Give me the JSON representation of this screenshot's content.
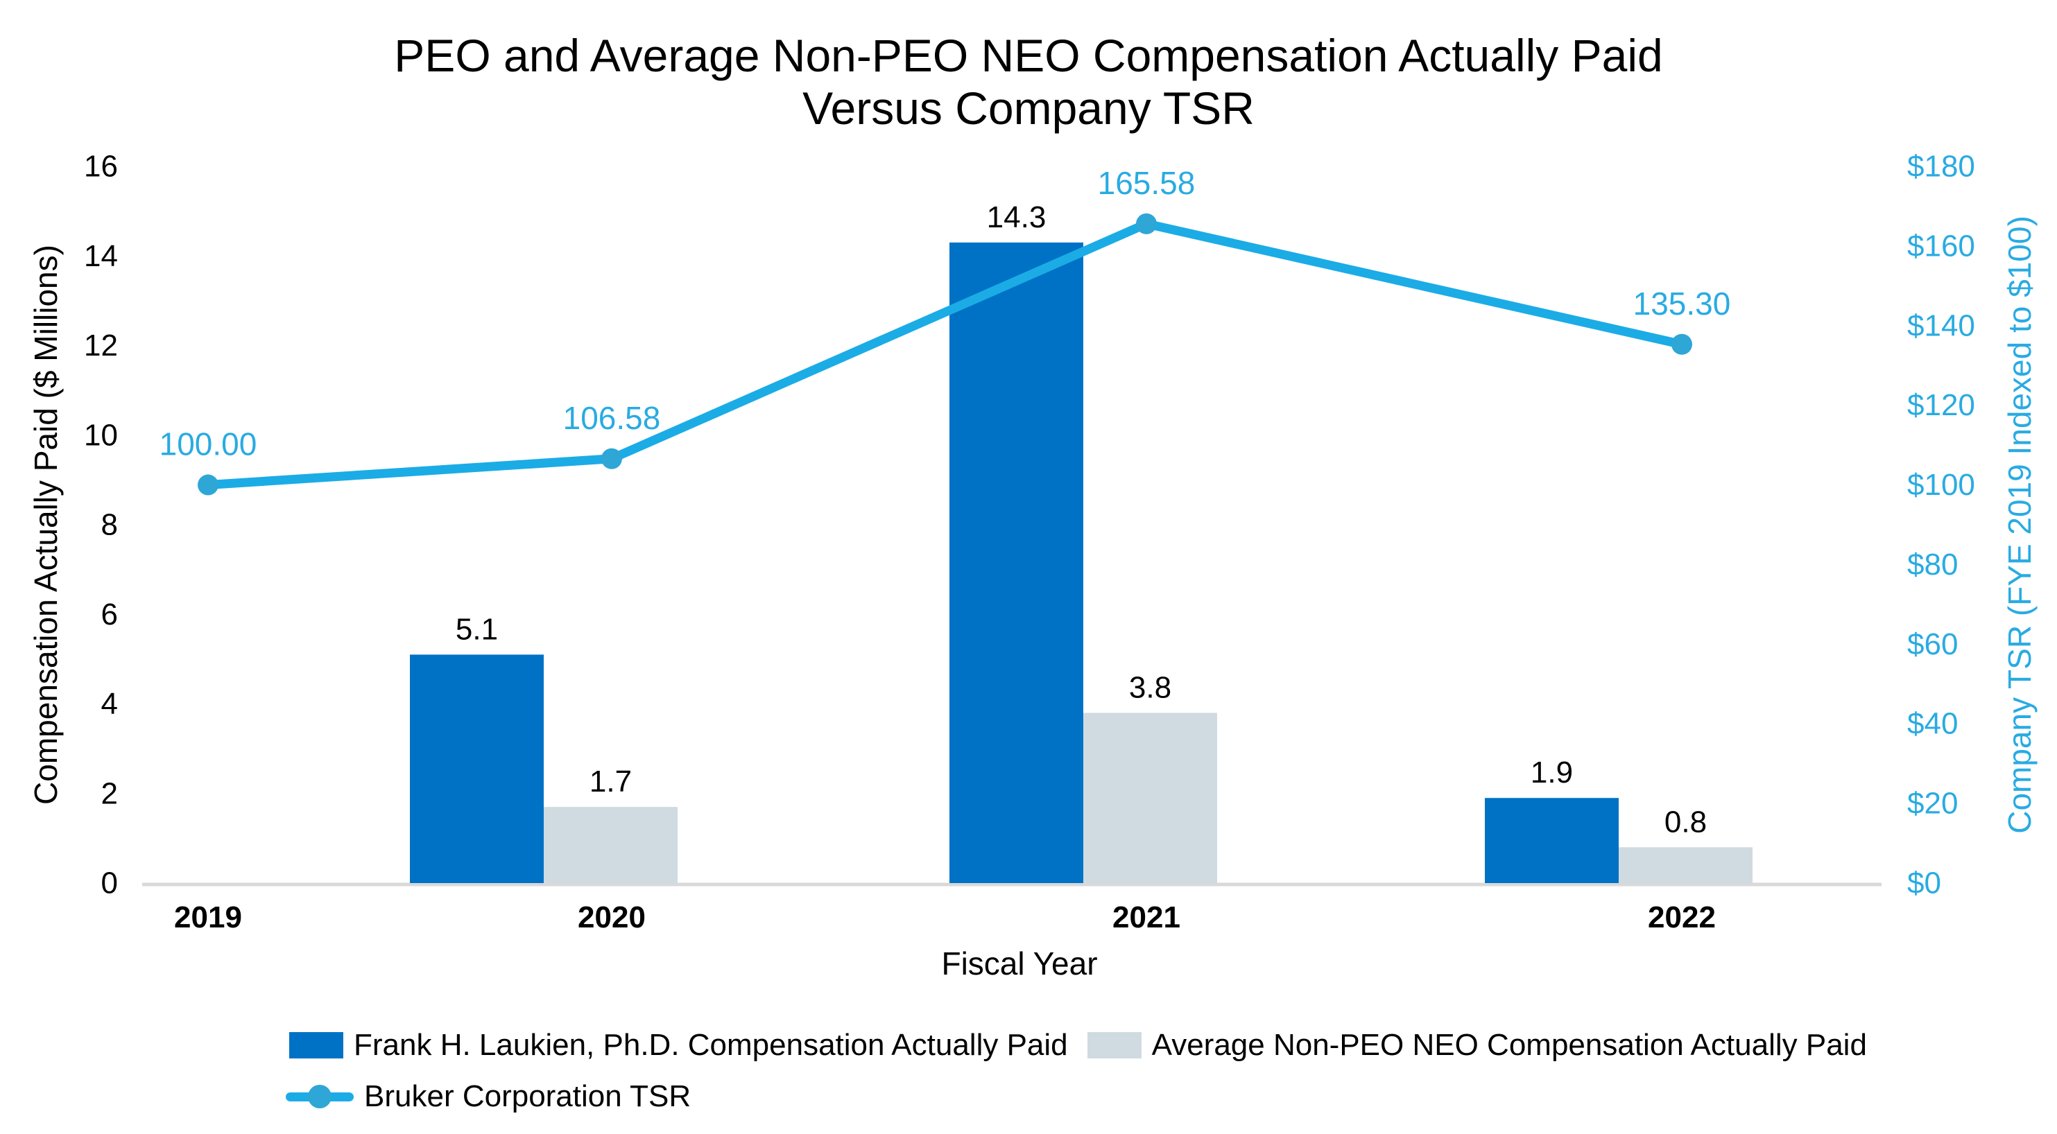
{
  "title": {
    "line1": "PEO and Average Non-PEO NEO Compensation Actually Paid",
    "line2": "Versus Company TSR"
  },
  "chart_data": {
    "type": "combo-bar-line",
    "categories": [
      "2019",
      "2020",
      "2021",
      "2022"
    ],
    "series": [
      {
        "name": "Frank H. Laukien, Ph.D. Compensation Actually Paid",
        "type": "bar",
        "axis": "left",
        "color": "#0072C6",
        "values": [
          null,
          5.1,
          14.3,
          1.9
        ],
        "labels": [
          "",
          "5.1",
          "14.3",
          "1.9"
        ]
      },
      {
        "name": "Average Non-PEO NEO Compensation Actually Paid",
        "type": "bar",
        "axis": "left",
        "color": "#CFDBE1",
        "values": [
          null,
          1.7,
          3.8,
          0.8
        ],
        "labels": [
          "",
          "1.7",
          "3.8",
          "0.8"
        ]
      },
      {
        "name": "Bruker Corporation TSR",
        "type": "line",
        "axis": "right",
        "color": "#1BACE6",
        "marker_color": "#2EA6D6",
        "label_color": "#29ABE2",
        "values": [
          100.0,
          106.58,
          165.58,
          135.3
        ],
        "labels": [
          "100.00",
          "106.58",
          "165.58",
          "135.30"
        ]
      }
    ],
    "left_axis": {
      "title": "Compensation Actually Paid ($ Millions)",
      "min": 0,
      "max": 16,
      "step": 2,
      "ticks": [
        "0",
        "2",
        "4",
        "6",
        "8",
        "10",
        "12",
        "14",
        "16"
      ],
      "text_color": "#000000"
    },
    "right_axis": {
      "title": "Company TSR (FYE 2019 Indexed to $100)",
      "min": 0,
      "max": 180,
      "step": 20,
      "ticks": [
        "$0",
        "$20",
        "$40",
        "$60",
        "$80",
        "$100",
        "$120",
        "$140",
        "$160",
        "$180"
      ],
      "text_color": "#29ABE2"
    },
    "x_axis": {
      "title": "Fiscal Year",
      "tick_labels": [
        "2019",
        "2020",
        "2021",
        "2022"
      ],
      "line_color": "#D9D9D9"
    },
    "legend": [
      {
        "label": "Frank H. Laukien, Ph.D. Compensation Actually Paid",
        "swatch": "bar",
        "color": "#0072C6"
      },
      {
        "label": "Average Non-PEO NEO Compensation Actually Paid",
        "swatch": "bar",
        "color": "#CFDBE1"
      },
      {
        "label": "Bruker Corporation TSR",
        "swatch": "line-marker",
        "color": "#1BACE6",
        "marker_color": "#2EA6D6"
      }
    ],
    "legend_position": "bottom",
    "grid": false
  }
}
